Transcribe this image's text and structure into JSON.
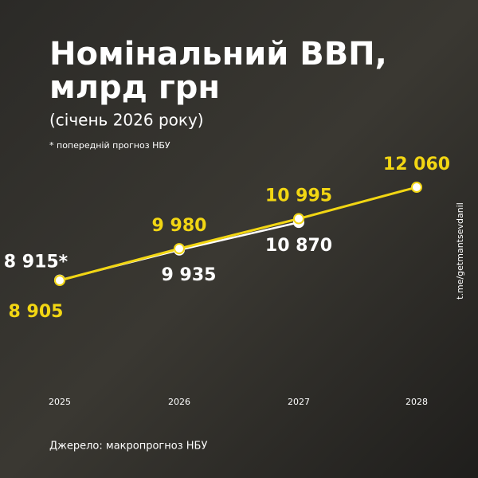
{
  "chart_data": {
    "type": "line",
    "title": [
      "Номінальний ВВП,",
      "млрд грн"
    ],
    "subtitle": "(січень 2026 року)",
    "note": "* попередній прогноз НБУ",
    "source": "Джерело: макропрогноз НБУ",
    "watermark": "t.me/getmantsevdanil",
    "categories": [
      "2025",
      "2026",
      "2027",
      "2028"
    ],
    "series": [
      {
        "color": "#f2d613",
        "values": [
          8905,
          9980,
          10995,
          12060
        ],
        "value_labels": [
          "8 905",
          "9 980",
          "10 995",
          "12 060"
        ]
      },
      {
        "color": "#ffffff",
        "values": [
          8915,
          9935,
          10870,
          null
        ],
        "value_labels": [
          "8 915*",
          "9 935",
          "10 870",
          null
        ]
      }
    ]
  }
}
